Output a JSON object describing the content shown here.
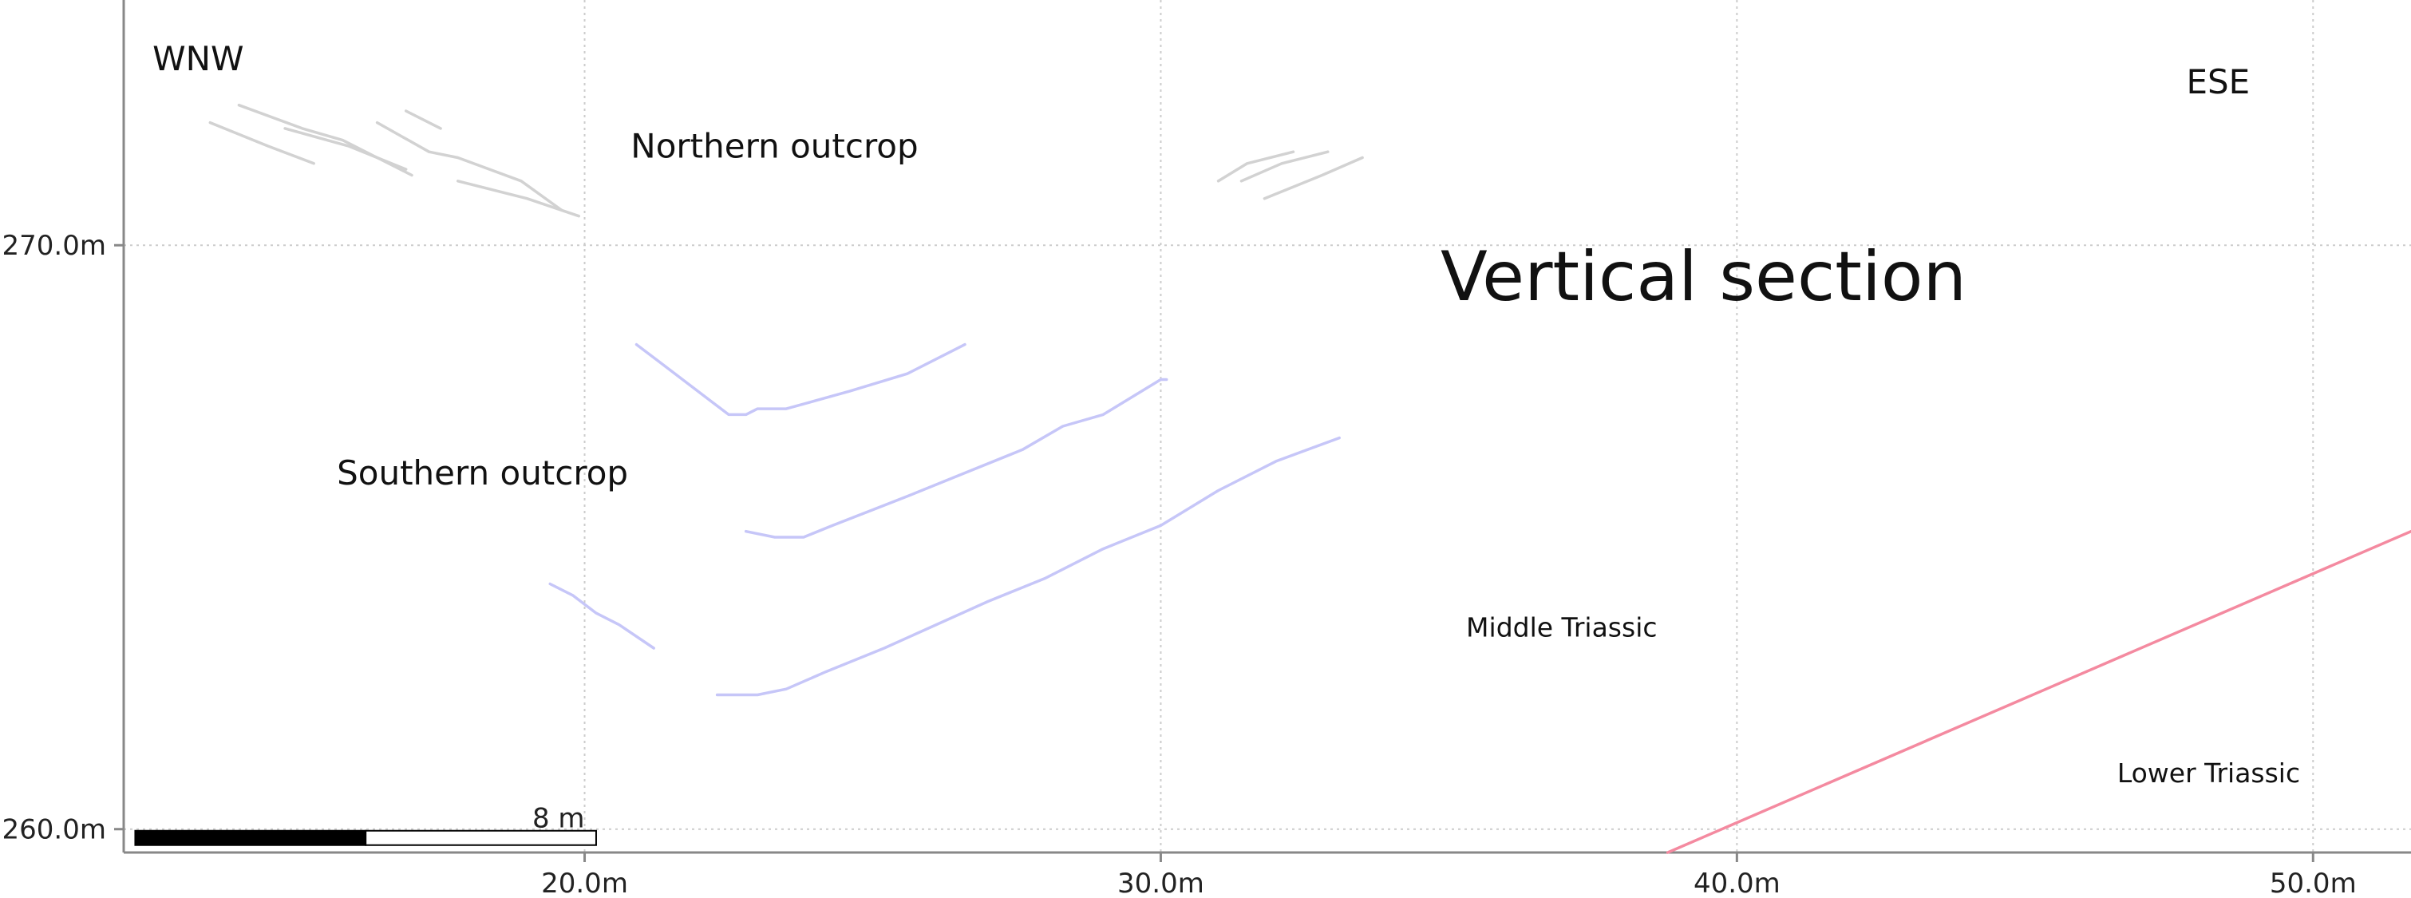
{
  "chart_data": {
    "type": "line",
    "title": "Vertical section",
    "xlabel": "",
    "ylabel": "",
    "x_unit": "m",
    "y_unit": "m",
    "xlim": [
      12.0,
      51.7
    ],
    "ylim": [
      259.6,
      274.2
    ],
    "x_ticks": [
      {
        "value": 20.0,
        "label": "20.0m"
      },
      {
        "value": 30.0,
        "label": "30.0m"
      },
      {
        "value": 40.0,
        "label": "40.0m"
      },
      {
        "value": 50.0,
        "label": "50.0m"
      }
    ],
    "y_ticks": [
      {
        "value": 270.0,
        "label": "270.0m"
      },
      {
        "value": 260.0,
        "label": "260.0m"
      }
    ],
    "grid": true,
    "annotations": [
      {
        "text": "WNW",
        "x": 12.5,
        "y": 273.0,
        "size": "medium"
      },
      {
        "text": "ESE",
        "x": 47.8,
        "y": 272.6,
        "size": "medium"
      },
      {
        "text": "Northern outcrop",
        "x": 20.8,
        "y": 271.5,
        "size": "medium"
      },
      {
        "text": "Southern outcrop",
        "x": 15.7,
        "y": 265.9,
        "size": "medium"
      },
      {
        "text": "Middle Triassic",
        "x": 35.3,
        "y": 263.3,
        "size": "small"
      },
      {
        "text": "Lower Triassic",
        "x": 46.6,
        "y": 260.8,
        "size": "small"
      }
    ],
    "series": [
      {
        "group": "northern",
        "color": "#d2d2d2",
        "points": [
          [
            13.5,
            272.1
          ],
          [
            14.5,
            271.7
          ],
          [
            15.3,
            271.4
          ]
        ]
      },
      {
        "group": "northern",
        "color": "#d2d2d2",
        "points": [
          [
            14.0,
            272.4
          ],
          [
            15.1,
            272.0
          ],
          [
            15.8,
            271.8
          ],
          [
            16.4,
            271.5
          ],
          [
            17.0,
            271.2
          ]
        ]
      },
      {
        "group": "northern",
        "color": "#d2d2d2",
        "points": [
          [
            14.8,
            272.0
          ],
          [
            15.9,
            271.7
          ],
          [
            16.9,
            271.3
          ]
        ]
      },
      {
        "group": "northern",
        "color": "#d2d2d2",
        "points": [
          [
            16.4,
            272.1
          ],
          [
            17.3,
            271.6
          ],
          [
            17.8,
            271.5
          ],
          [
            18.9,
            271.1
          ],
          [
            19.6,
            270.6
          ]
        ]
      },
      {
        "group": "northern",
        "color": "#d2d2d2",
        "points": [
          [
            16.9,
            272.3
          ],
          [
            17.5,
            272.0
          ]
        ]
      },
      {
        "group": "northern",
        "color": "#d2d2d2",
        "points": [
          [
            17.8,
            271.1
          ],
          [
            19.0,
            270.8
          ],
          [
            19.9,
            270.5
          ]
        ]
      },
      {
        "group": "northern",
        "color": "#d2d2d2",
        "points": [
          [
            31.0,
            271.1
          ],
          [
            31.5,
            271.4
          ],
          [
            32.3,
            271.6
          ]
        ]
      },
      {
        "group": "northern",
        "color": "#d2d2d2",
        "points": [
          [
            31.4,
            271.1
          ],
          [
            32.1,
            271.4
          ],
          [
            32.9,
            271.6
          ]
        ]
      },
      {
        "group": "northern",
        "color": "#d2d2d2",
        "points": [
          [
            31.8,
            270.8
          ],
          [
            32.8,
            271.2
          ],
          [
            33.5,
            271.5
          ]
        ]
      },
      {
        "group": "southern",
        "color": "#c6c6f8",
        "points": [
          [
            20.9,
            268.3
          ],
          [
            21.3,
            268.0
          ],
          [
            22.5,
            267.1
          ],
          [
            22.8,
            267.1
          ],
          [
            23.0,
            267.2
          ],
          [
            23.5,
            267.2
          ],
          [
            24.6,
            267.5
          ],
          [
            25.6,
            267.8
          ],
          [
            26.6,
            268.3
          ]
        ]
      },
      {
        "group": "southern",
        "color": "#c6c6f8",
        "points": [
          [
            22.8,
            265.1
          ],
          [
            23.3,
            265.0
          ],
          [
            23.8,
            265.0
          ],
          [
            24.3,
            265.2
          ],
          [
            25.6,
            265.7
          ],
          [
            26.6,
            266.1
          ],
          [
            27.6,
            266.5
          ],
          [
            28.3,
            266.9
          ],
          [
            29.0,
            267.1
          ],
          [
            30.0,
            267.7
          ],
          [
            30.1,
            267.7
          ]
        ]
      },
      {
        "group": "southern",
        "color": "#c6c6f8",
        "points": [
          [
            19.4,
            264.2
          ],
          [
            19.8,
            264.0
          ],
          [
            20.2,
            263.7
          ],
          [
            20.6,
            263.5
          ],
          [
            21.2,
            263.1
          ]
        ]
      },
      {
        "group": "southern",
        "color": "#c6c6f8",
        "points": [
          [
            22.3,
            262.3
          ],
          [
            23.0,
            262.3
          ],
          [
            23.5,
            262.4
          ],
          [
            24.2,
            262.7
          ],
          [
            25.2,
            263.1
          ],
          [
            27.0,
            263.9
          ],
          [
            28.0,
            264.3
          ],
          [
            29.0,
            264.8
          ],
          [
            30.0,
            265.2
          ],
          [
            31.0,
            265.8
          ],
          [
            32.0,
            266.3
          ],
          [
            33.1,
            266.7
          ]
        ]
      },
      {
        "group": "contact",
        "color": "#f48aa0",
        "points": [
          [
            38.8,
            259.6
          ],
          [
            51.7,
            265.1
          ]
        ]
      }
    ],
    "scale_bar": {
      "label": "8 m",
      "length": 8,
      "x_start": 12.2,
      "y": 260.0
    }
  }
}
